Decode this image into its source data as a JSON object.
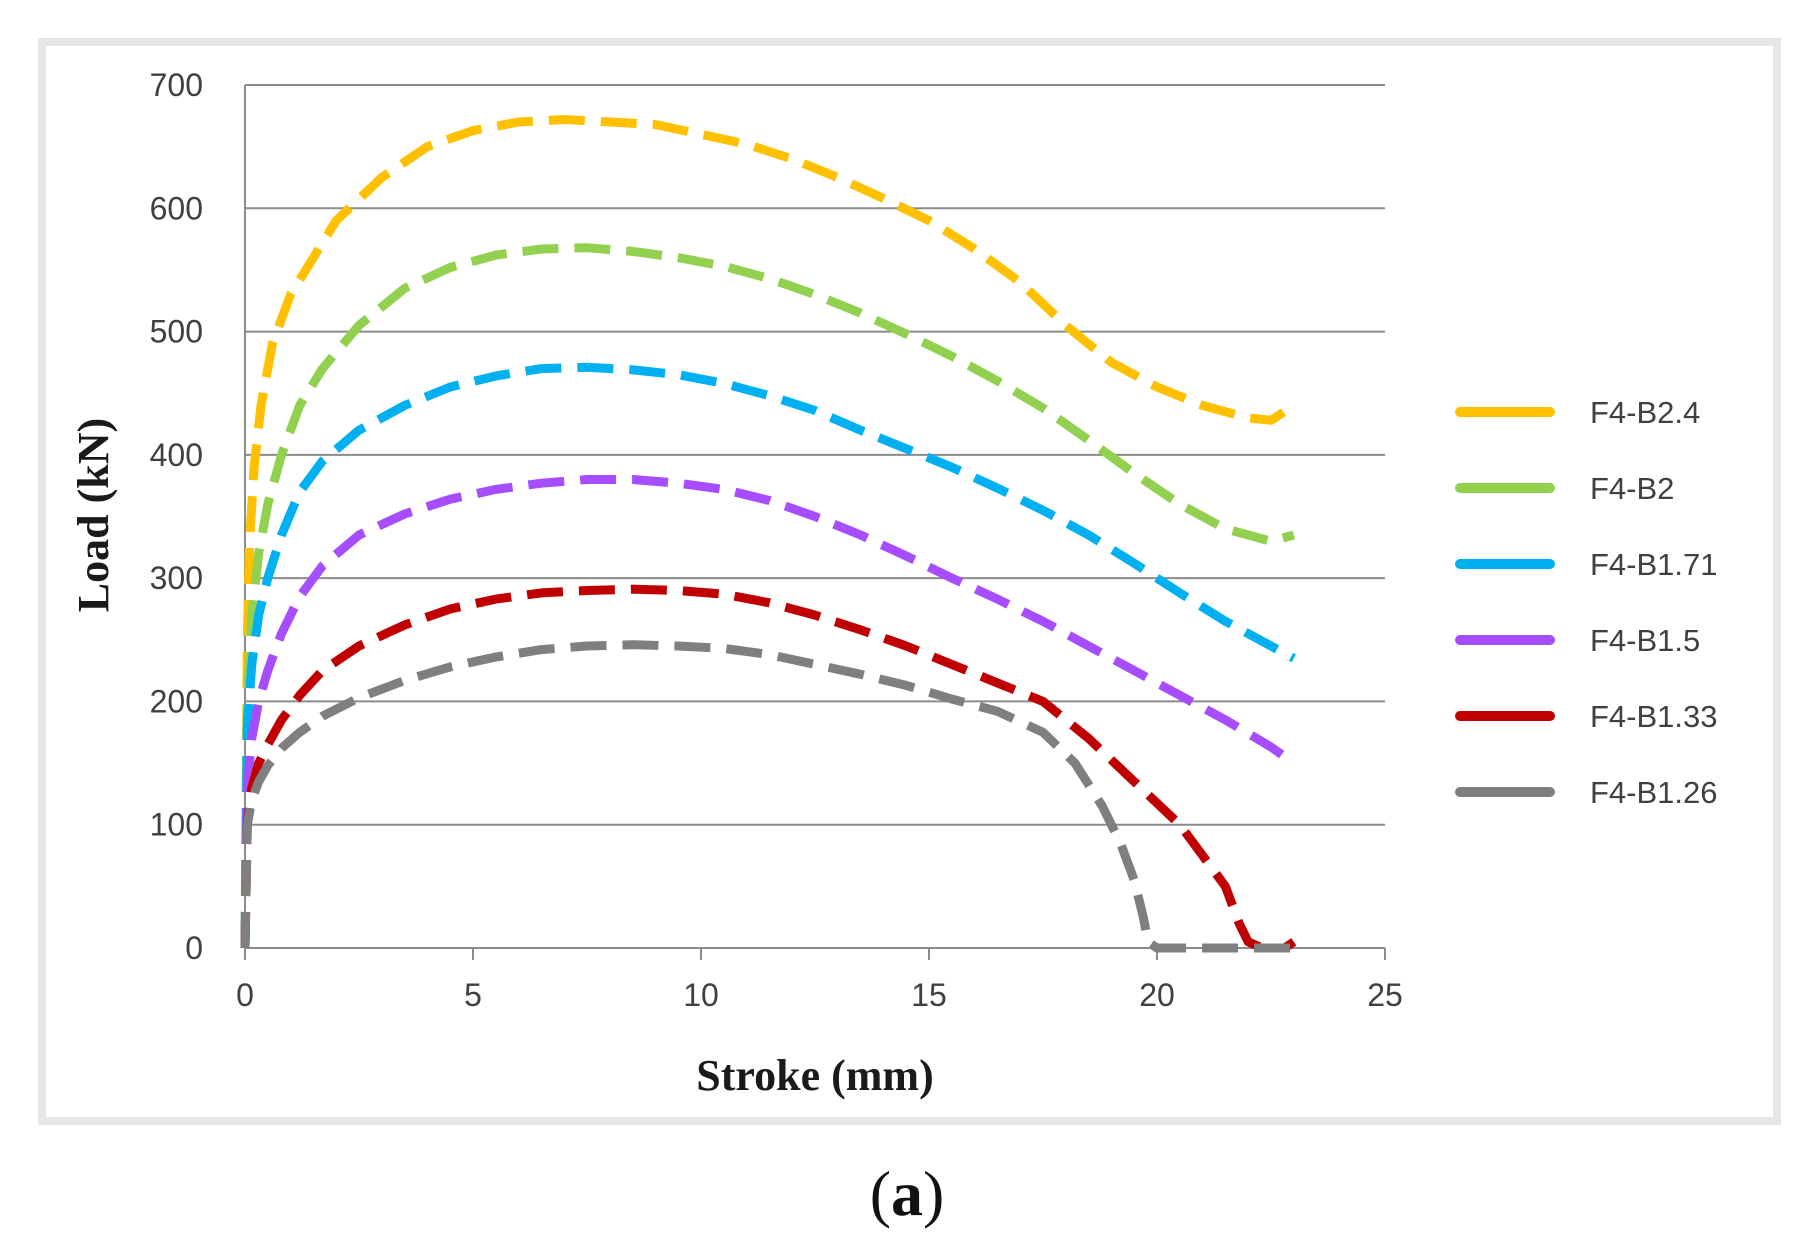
{
  "chart_data": {
    "type": "line",
    "title": "",
    "xlabel": "Stroke (mm)",
    "ylabel": "Load (kN)",
    "xlim": [
      0,
      25
    ],
    "ylim": [
      0,
      700
    ],
    "xticks": [
      0,
      5,
      10,
      15,
      20,
      25
    ],
    "yticks": [
      0,
      100,
      200,
      300,
      400,
      500,
      600,
      700
    ],
    "grid": "horizontal",
    "legend_position": "right",
    "line_style": "dashed",
    "series": [
      {
        "name": "F4-B2.4",
        "color": "#FFC000",
        "x": [
          0,
          0.05,
          0.1,
          0.2,
          0.35,
          0.6,
          1.0,
          1.5,
          2.0,
          3.0,
          4.0,
          5.0,
          6.0,
          7.0,
          8.0,
          9.0,
          10.0,
          11.0,
          12.0,
          13.0,
          14.0,
          15.0,
          16.0,
          17.0,
          18.0,
          19.0,
          20.0,
          21.0,
          22.0,
          22.5,
          23.0
        ],
        "y": [
          0,
          250,
          330,
          390,
          440,
          490,
          530,
          560,
          590,
          625,
          650,
          663,
          670,
          672,
          670,
          668,
          660,
          652,
          640,
          625,
          608,
          590,
          567,
          540,
          505,
          475,
          455,
          440,
          430,
          428,
          440
        ]
      },
      {
        "name": "F4-B2",
        "color": "#92D050",
        "x": [
          0,
          0.05,
          0.15,
          0.3,
          0.5,
          0.8,
          1.2,
          1.7,
          2.5,
          3.5,
          4.5,
          5.5,
          6.5,
          7.5,
          8.5,
          9.5,
          10.5,
          11.5,
          12.5,
          13.5,
          14.5,
          15.5,
          16.5,
          17.5,
          18.5,
          19.5,
          20.5,
          21.5,
          22.5,
          23.0
        ],
        "y": [
          0,
          200,
          270,
          320,
          360,
          400,
          440,
          470,
          505,
          535,
          552,
          562,
          567,
          568,
          565,
          560,
          553,
          543,
          530,
          515,
          498,
          480,
          460,
          438,
          412,
          385,
          360,
          340,
          330,
          335
        ]
      },
      {
        "name": "F4-B1.71",
        "color": "#00B0F0",
        "x": [
          0,
          0.05,
          0.15,
          0.3,
          0.5,
          0.8,
          1.2,
          1.7,
          2.5,
          3.5,
          4.5,
          5.5,
          6.5,
          7.5,
          8.5,
          9.5,
          10.5,
          11.5,
          12.5,
          13.5,
          14.5,
          15.5,
          16.5,
          17.5,
          18.5,
          19.5,
          20.5,
          21.5,
          22.5,
          23.0
        ],
        "y": [
          0,
          180,
          230,
          270,
          300,
          335,
          370,
          395,
          420,
          440,
          455,
          464,
          470,
          471,
          469,
          465,
          458,
          448,
          436,
          420,
          405,
          390,
          373,
          355,
          335,
          312,
          288,
          265,
          245,
          235
        ]
      },
      {
        "name": "F4-B1.5",
        "color": "#A64DFF",
        "x": [
          0,
          0.05,
          0.15,
          0.3,
          0.5,
          0.8,
          1.2,
          1.7,
          2.5,
          3.5,
          4.5,
          5.5,
          6.5,
          7.5,
          8.5,
          9.5,
          10.5,
          11.5,
          12.5,
          13.5,
          14.5,
          15.5,
          16.5,
          17.5,
          18.5,
          19.5,
          20.5,
          21.5,
          22.5,
          23.0
        ],
        "y": [
          0,
          130,
          170,
          200,
          225,
          255,
          285,
          310,
          335,
          352,
          364,
          372,
          377,
          380,
          380,
          377,
          372,
          363,
          350,
          335,
          318,
          300,
          283,
          265,
          245,
          225,
          205,
          185,
          163,
          150
        ]
      },
      {
        "name": "F4-B1.33",
        "color": "#C00000",
        "x": [
          0,
          0.05,
          0.15,
          0.3,
          0.5,
          0.8,
          1.2,
          1.7,
          2.5,
          3.5,
          4.5,
          5.5,
          6.5,
          7.5,
          8.5,
          9.5,
          10.5,
          11.5,
          12.5,
          13.5,
          14.5,
          15.5,
          16.5,
          17.5,
          18.5,
          19.5,
          20.5,
          21.0,
          21.5,
          21.8,
          22.0,
          22.3,
          22.8,
          23.0
        ],
        "y": [
          0,
          100,
          130,
          150,
          165,
          185,
          205,
          225,
          245,
          262,
          275,
          283,
          288,
          290,
          291,
          290,
          287,
          280,
          270,
          258,
          245,
          230,
          215,
          200,
          170,
          135,
          100,
          75,
          50,
          20,
          5,
          0,
          0,
          5
        ]
      },
      {
        "name": "F4-B1.26",
        "color": "#7F7F7F",
        "x": [
          0,
          0.05,
          0.15,
          0.3,
          0.5,
          0.8,
          1.2,
          1.7,
          2.5,
          3.5,
          4.5,
          5.5,
          6.5,
          7.5,
          8.5,
          9.5,
          10.5,
          11.5,
          12.5,
          13.5,
          14.5,
          15.5,
          16.5,
          17.5,
          18.2,
          18.8,
          19.2,
          19.5,
          19.7,
          19.8,
          20.0,
          21.0,
          22.0,
          23.0
        ],
        "y": [
          0,
          100,
          120,
          135,
          148,
          162,
          175,
          188,
          203,
          217,
          228,
          236,
          242,
          245,
          246,
          245,
          243,
          238,
          230,
          222,
          213,
          202,
          192,
          175,
          150,
          115,
          85,
          55,
          25,
          5,
          0,
          0,
          0,
          0
        ]
      }
    ]
  },
  "caption": {
    "open": "(",
    "letter": "a",
    "close": ")"
  }
}
